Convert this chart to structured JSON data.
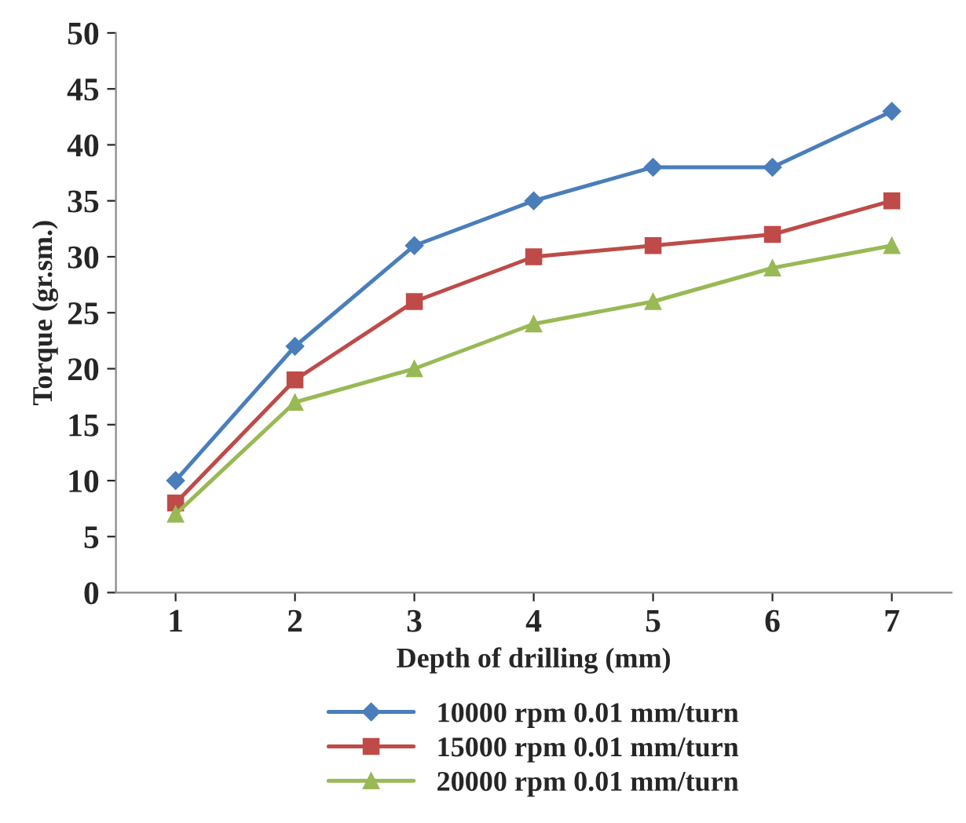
{
  "chart_data": {
    "type": "line",
    "xlabel": "Depth of drilling (mm)",
    "ylabel": "Torque (gr.sm.)",
    "categories": [
      "1",
      "2",
      "3",
      "4",
      "5",
      "6",
      "7"
    ],
    "series": [
      {
        "name": "10000 rpm 0.01 mm/turn",
        "color": "#4a7ebb",
        "marker": "diamond",
        "values": [
          10,
          22,
          31,
          35,
          38,
          38,
          43
        ]
      },
      {
        "name": "15000 rpm 0.01 mm/turn",
        "color": "#be4b48",
        "marker": "square",
        "values": [
          8,
          19,
          26,
          30,
          31,
          32,
          35
        ]
      },
      {
        "name": "20000 rpm 0.01 mm/turn",
        "color": "#98b954",
        "marker": "triangle",
        "values": [
          7,
          17,
          20,
          24,
          26,
          29,
          31
        ]
      }
    ],
    "ylim": [
      0,
      50
    ],
    "yticks": [
      0,
      5,
      10,
      15,
      20,
      25,
      30,
      35,
      40,
      45,
      50
    ],
    "grid": false,
    "legend": "bottom",
    "line_style": "solid"
  }
}
